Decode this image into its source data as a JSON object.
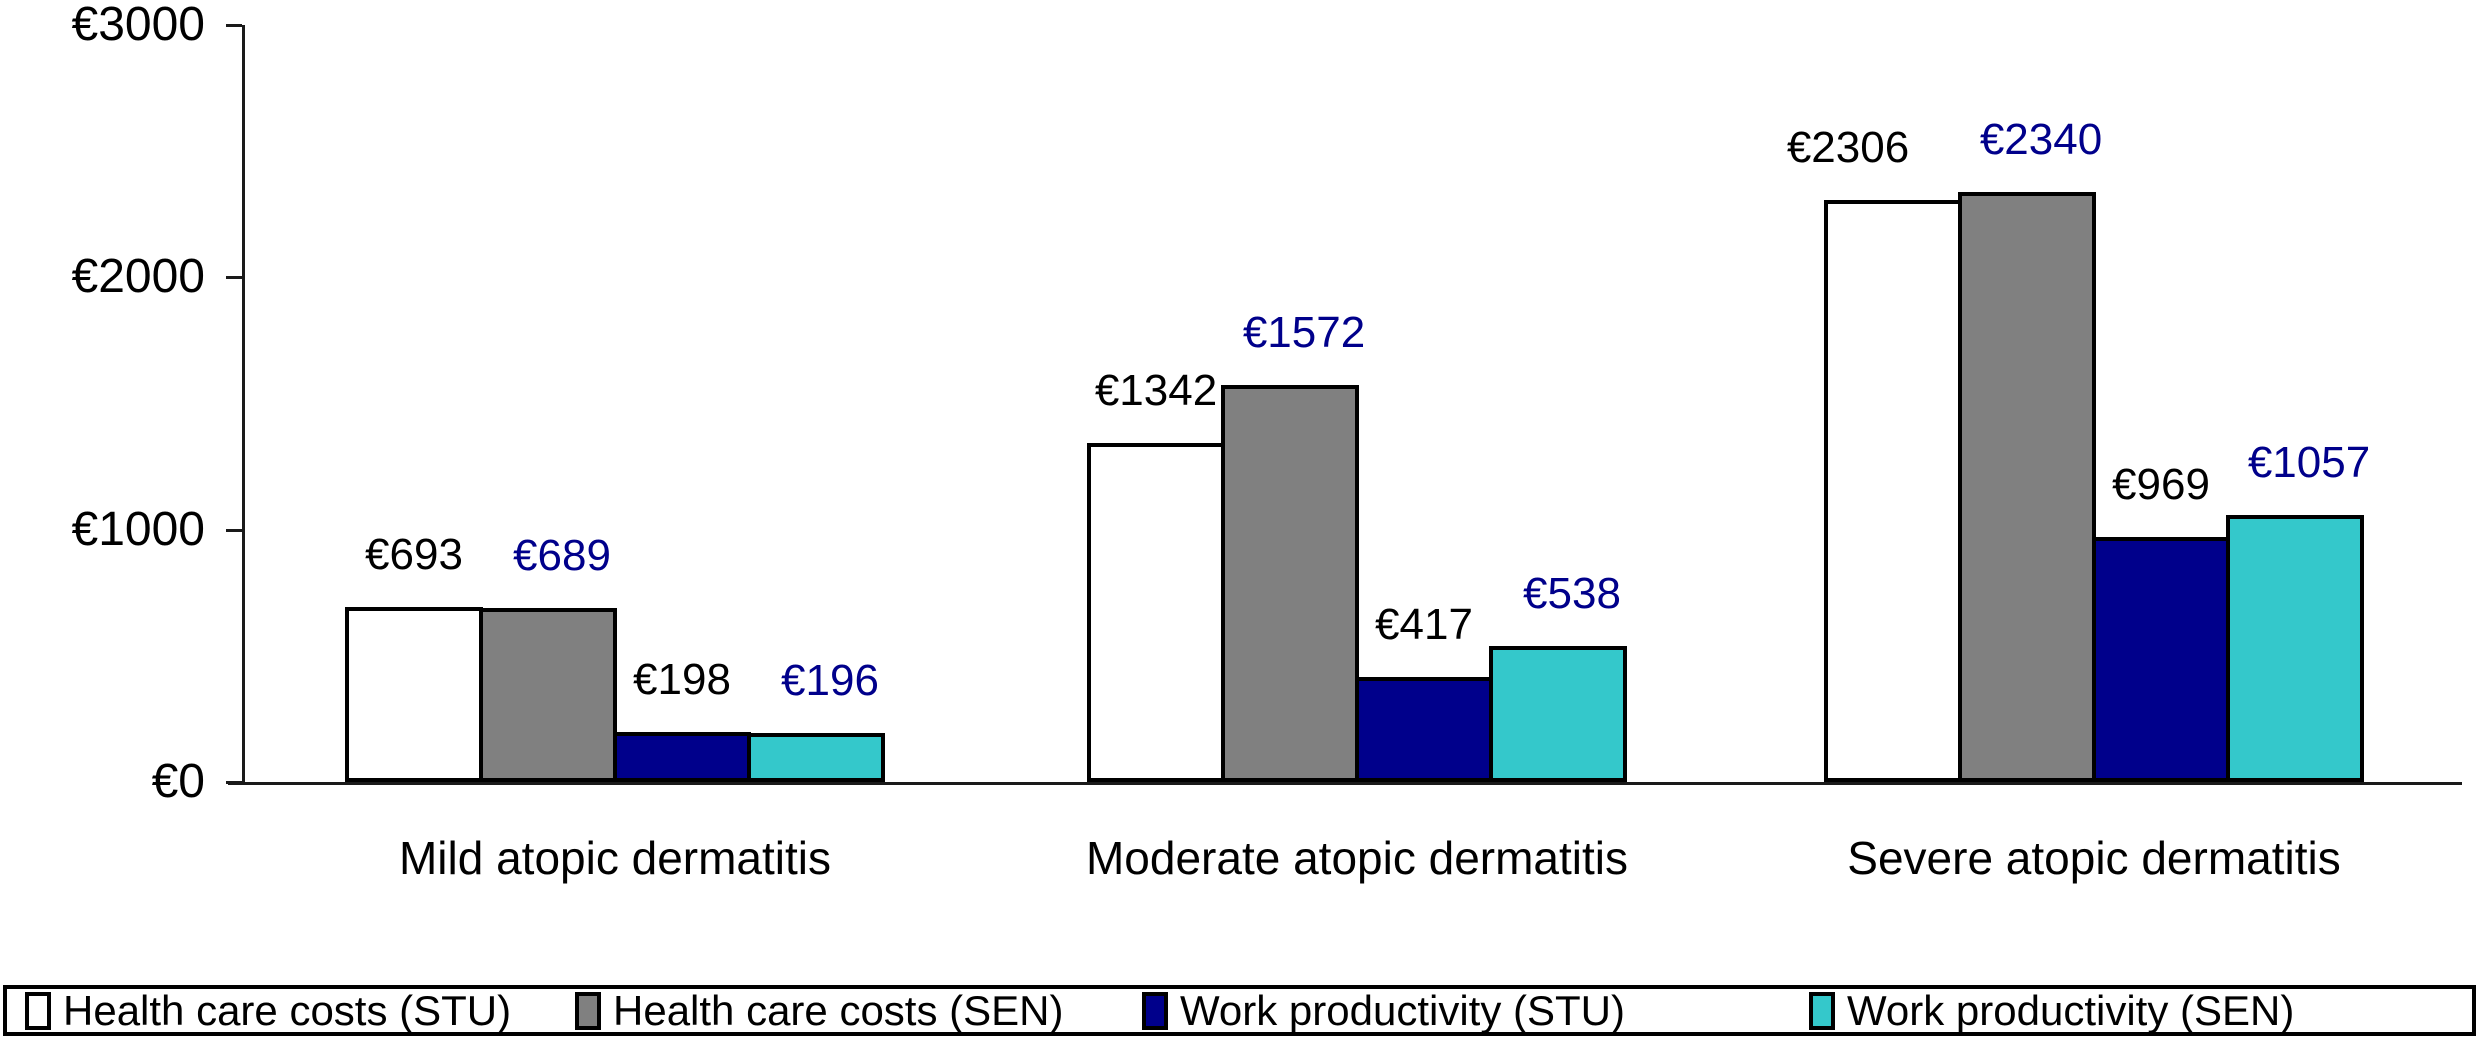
{
  "chart_data": {
    "type": "bar",
    "title": "",
    "currency_prefix": "€",
    "categories": [
      "Mild atopic dermatitis",
      "Moderate atopic dermatitis",
      "Severe atopic dermatitis"
    ],
    "series": [
      {
        "name": "Health care costs (STU)",
        "color": "#FFFFFF",
        "label_color": "#000000",
        "values": [
          693,
          1342,
          2306
        ]
      },
      {
        "name": "Health care costs (SEN)",
        "color": "#808080",
        "label_color": "#00008B",
        "values": [
          689,
          1572,
          2340
        ]
      },
      {
        "name": "Work productivity (STU)",
        "color": "#00008B",
        "label_color": "#000000",
        "values": [
          198,
          417,
          969
        ]
      },
      {
        "name": "Work productivity (SEN)",
        "color": "#34C8CB",
        "label_color": "#00008B",
        "values": [
          196,
          538,
          1057
        ]
      }
    ],
    "value_labels": [
      [
        "€693",
        "€1342",
        "€2306"
      ],
      [
        "€689",
        "€1572",
        "€2340"
      ],
      [
        "€198",
        "€417",
        "€969"
      ],
      [
        "€196",
        "€538",
        "€1057"
      ]
    ],
    "ylim": [
      0,
      3000
    ],
    "yticks": [
      {
        "value": 0,
        "label": "€0"
      },
      {
        "value": 1000,
        "label": "€1000"
      },
      {
        "value": 2000,
        "label": "€2000"
      },
      {
        "value": 3000,
        "label": "€3000"
      }
    ],
    "grid": false,
    "legend_position": "bottom",
    "bar_border_color": "#000000",
    "axis_color": "#1a1a1a",
    "background_color": "#FFFFFF"
  }
}
